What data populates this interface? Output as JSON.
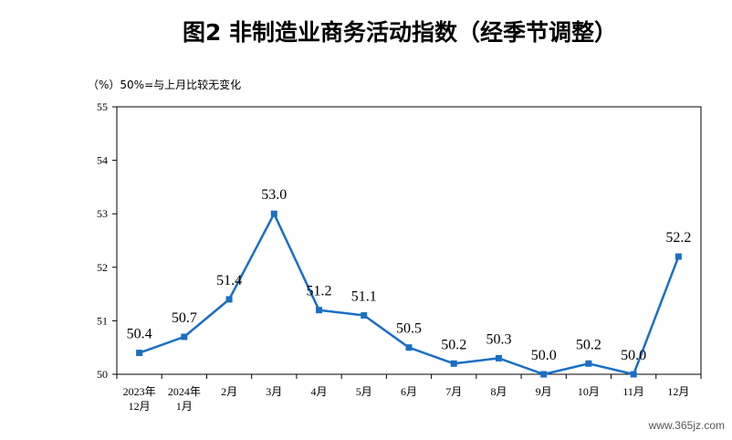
{
  "chart_data": {
    "type": "line",
    "title": "图2  非制造业商务活动指数（经季节调整）",
    "subtitle": "（%）50%=与上月比较无变化",
    "ylim": [
      50,
      55
    ],
    "yticks": [
      "50",
      "51",
      "52",
      "53",
      "54",
      "55"
    ],
    "categories": [
      [
        "2023年",
        "12月"
      ],
      [
        "2024年",
        "1月"
      ],
      [
        "2月"
      ],
      [
        "3月"
      ],
      [
        "4月"
      ],
      [
        "5月"
      ],
      [
        "6月"
      ],
      [
        "7月"
      ],
      [
        "8月"
      ],
      [
        "9月"
      ],
      [
        "10月"
      ],
      [
        "11月"
      ],
      [
        "12月"
      ]
    ],
    "values": [
      50.4,
      50.7,
      51.4,
      53.0,
      51.2,
      51.1,
      50.5,
      50.2,
      50.3,
      50.0,
      50.2,
      50.0,
      52.2
    ],
    "data_labels": [
      "50.4",
      "50.7",
      "51.4",
      "53.0",
      "51.2",
      "51.1",
      "50.5",
      "50.2",
      "50.3",
      "50.0",
      "50.2",
      "50.0",
      "52.2"
    ],
    "line_color": "#1a6fc4",
    "grid": false,
    "legend": "none"
  },
  "watermark": "www.365jz.com"
}
